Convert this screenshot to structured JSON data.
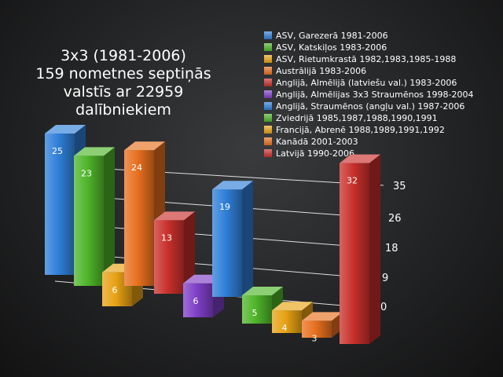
{
  "chart_data": {
    "type": "bar",
    "title_lines": [
      "3x3 (1981-2006)",
      "159 nometnes septiņās",
      "valstīs ar 22959",
      "dalībniekiem"
    ],
    "yticks": [
      "0",
      "9",
      "18",
      "26",
      "35"
    ],
    "ylim": [
      0,
      35
    ],
    "legend_position": "top-right",
    "grid": true,
    "series": [
      {
        "name": "ASV, Garezerā 1981-2006",
        "value": 25,
        "color": "#2f7fd8"
      },
      {
        "name": "ASV, Katskiļos 1983-2006",
        "value": 23,
        "color": "#4fb52a"
      },
      {
        "name": "ASV, Rietumkrastā 1982,1983,1985-1988",
        "value": 6,
        "color": "#e8a214"
      },
      {
        "name": "Austrālijā 1983-2006",
        "value": 24,
        "color": "#e8701e"
      },
      {
        "name": "Anglijā, Almēlijā (latviešu val.) 1983-2006",
        "value": 13,
        "color": "#c9302c"
      },
      {
        "name": "Anglijā, Almēlijas 3x3 Straumēnos 1998-2004",
        "value": 6,
        "color": "#7f3fc8"
      },
      {
        "name": "Anglijā, Straumēnos (angļu val.) 1987-2006",
        "value": 19,
        "color": "#2f7fd8"
      },
      {
        "name": "Zviedrijā 1985,1987,1988,1990,1991",
        "value": 5,
        "color": "#4fb52a"
      },
      {
        "name": "Francijā, Abrenē 1988,1989,1991,1992",
        "value": 4,
        "color": "#e8a214"
      },
      {
        "name": "Kanādā 2001-2003",
        "value": 3,
        "color": "#e8701e"
      },
      {
        "name": "Latvijā 1990-2006",
        "value": 32,
        "color": "#c9302c"
      }
    ]
  }
}
